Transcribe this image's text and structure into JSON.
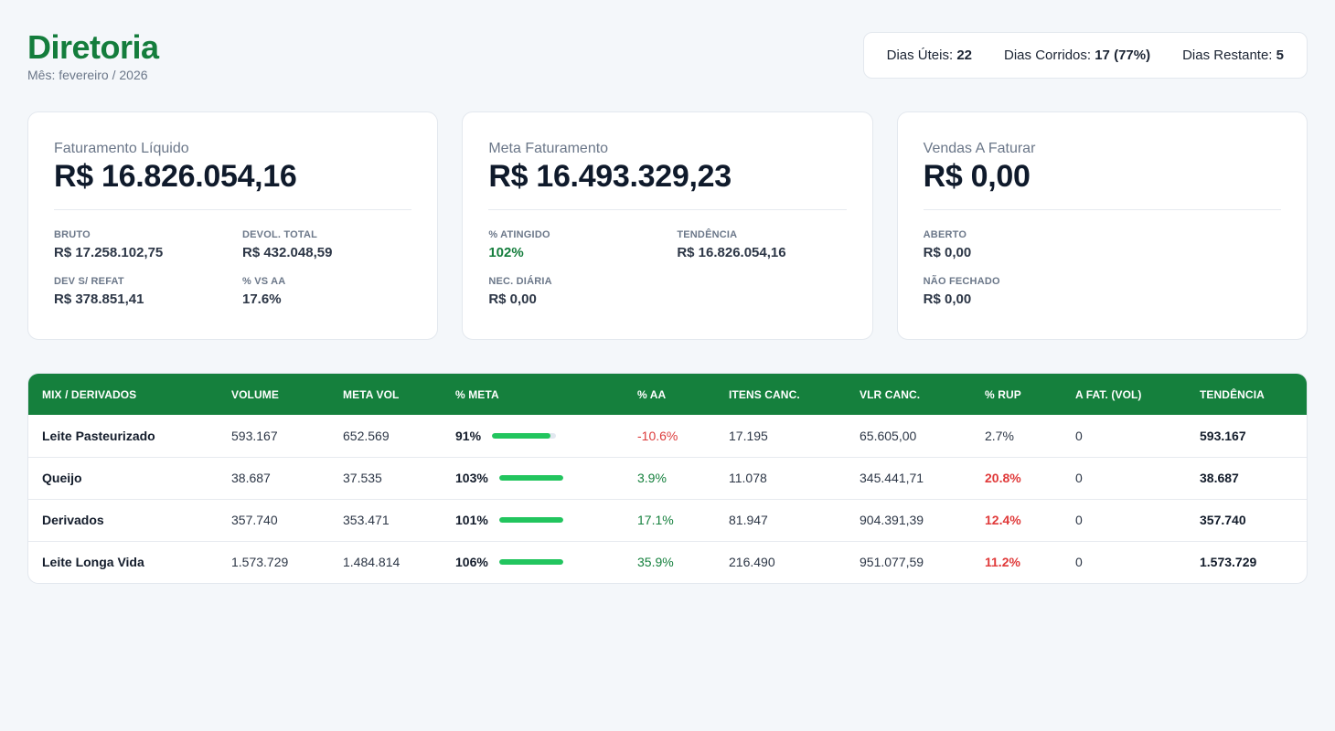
{
  "header": {
    "title": "Diretoria",
    "subtitle": "Mês: fevereiro / 2026",
    "days": [
      {
        "label": "Dias Úteis:",
        "value": "22"
      },
      {
        "label": "Dias Corridos:",
        "value": "17 (77%)"
      },
      {
        "label": "Dias Restante:",
        "value": "5"
      }
    ]
  },
  "cards": [
    {
      "label": "Faturamento Líquido",
      "value": "R$ 16.826.054,16",
      "metrics": [
        {
          "label": "BRUTO",
          "value": "R$ 17.258.102,75"
        },
        {
          "label": "DEVOL. TOTAL",
          "value": "R$ 432.048,59"
        },
        {
          "label": "DEV S/ REFAT",
          "value": "R$ 378.851,41"
        },
        {
          "label": "% VS AA",
          "value": "17.6%"
        }
      ]
    },
    {
      "label": "Meta Faturamento",
      "value": "R$ 16.493.329,23",
      "metrics": [
        {
          "label": "% ATINGIDO",
          "value": "102%"
        },
        {
          "label": "TENDÊNCIA",
          "value": "R$ 16.826.054,16"
        },
        {
          "label": "NEC. DIÁRIA",
          "value": "R$ 0,00"
        }
      ]
    },
    {
      "label": "Vendas A Faturar",
      "value": "R$ 0,00",
      "metrics": [
        {
          "label": "ABERTO",
          "value": "R$ 0,00"
        },
        {
          "label": "NÃO FECHADO",
          "value": "R$ 0,00"
        }
      ]
    }
  ],
  "table": {
    "headers": [
      "MIX / DERIVADOS",
      "VOLUME",
      "META VOL",
      "% META",
      "% AA",
      "ITENS CANC.",
      "VLR CANC.",
      "% RUP",
      "A FAT. (VOL)",
      "TENDÊNCIA"
    ],
    "rows": [
      {
        "name": "Leite Pasteurizado",
        "volume": "593.167",
        "meta_vol": "652.569",
        "meta_pct": "91%",
        "meta_fraction": 0.91,
        "aa": "-10.6%",
        "itens_canc": "17.195",
        "vlr_canc": "65.605,00",
        "rup": "2.7%",
        "a_fat": "0",
        "tendencia": "593.167"
      },
      {
        "name": "Queijo",
        "volume": "38.687",
        "meta_vol": "37.535",
        "meta_pct": "103%",
        "meta_fraction": 1.03,
        "aa": "3.9%",
        "itens_canc": "11.078",
        "vlr_canc": "345.441,71",
        "rup": "20.8%",
        "a_fat": "0",
        "tendencia": "38.687"
      },
      {
        "name": "Derivados",
        "volume": "357.740",
        "meta_vol": "353.471",
        "meta_pct": "101%",
        "meta_fraction": 1.01,
        "aa": "17.1%",
        "itens_canc": "81.947",
        "vlr_canc": "904.391,39",
        "rup": "12.4%",
        "a_fat": "0",
        "tendencia": "357.740"
      },
      {
        "name": "Leite Longa Vida",
        "volume": "1.573.729",
        "meta_vol": "1.484.814",
        "meta_pct": "106%",
        "meta_fraction": 1.06,
        "aa": "35.9%",
        "itens_canc": "216.490",
        "vlr_canc": "951.077,59",
        "rup": "11.2%",
        "a_fat": "0",
        "tendencia": "1.573.729"
      }
    ]
  },
  "colors": {
    "brand_green": "#15803d",
    "bar_green": "#22c55e",
    "negative_red": "#dc3b3b"
  }
}
